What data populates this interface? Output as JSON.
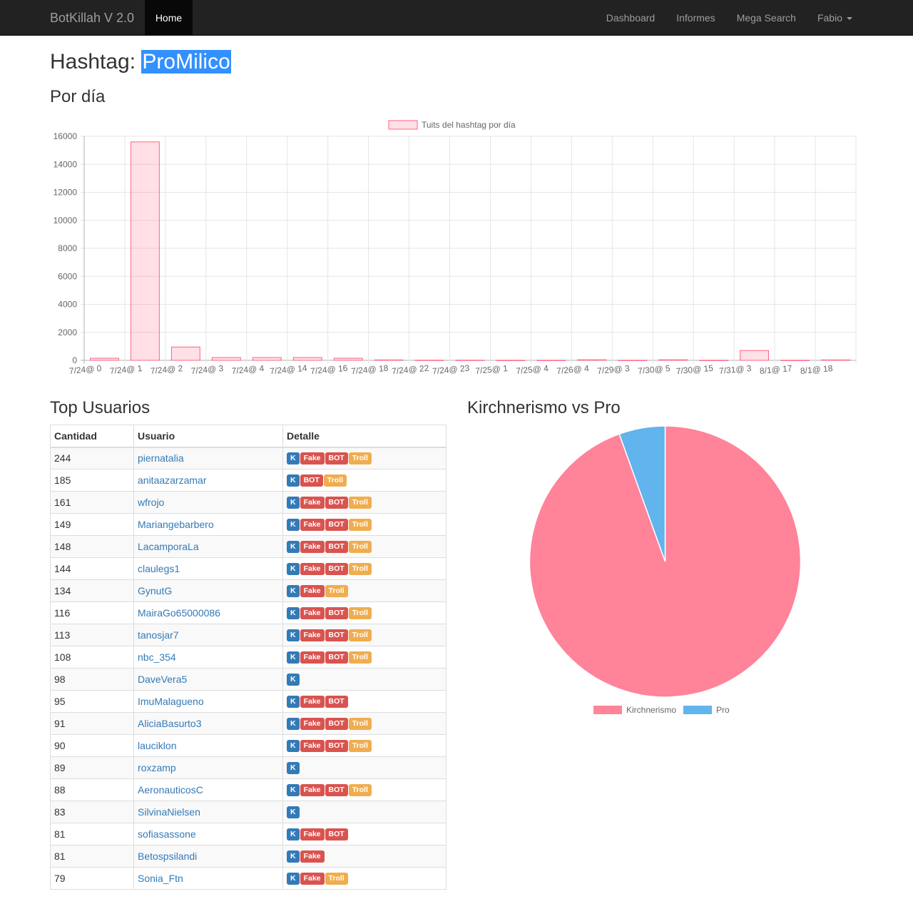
{
  "navbar": {
    "brand": "BotKillah V 2.0",
    "active_item": "Home",
    "right_items": [
      "Dashboard",
      "Informes",
      "Mega Search"
    ],
    "user_menu": "Fabio"
  },
  "page": {
    "title_prefix": "Hashtag: ",
    "hashtag": "ProMilico",
    "section_per_day": "Por día",
    "section_top_users": "Top Usuarios",
    "section_pie": "Kirchnerismo vs Pro"
  },
  "colors": {
    "bar_fill": "rgba(255, 99, 132, 0.2)",
    "bar_border": "rgb(255, 99, 132)",
    "pie_kirchnerismo": "#ff8399",
    "pie_pro": "#61b4ec",
    "link": "#337ab7"
  },
  "chart_data": [
    {
      "type": "bar",
      "legend": [
        "Tuits del hashtag  por día"
      ],
      "categories": [
        "7/24@ 0",
        "7/24@ 1",
        "7/24@ 2",
        "7/24@ 3",
        "7/24@ 4",
        "7/24@ 14",
        "7/24@ 16",
        "7/24@ 18",
        "7/24@ 22",
        "7/24@ 23",
        "7/25@ 1",
        "7/25@ 4",
        "7/26@ 4",
        "7/29@ 3",
        "7/30@ 5",
        "7/30@ 15",
        "7/31@ 3",
        "8/1@ 17",
        "8/1@ 18"
      ],
      "series": [
        {
          "name": "Tuits del hashtag  por día",
          "values": [
            150,
            15600,
            950,
            200,
            200,
            200,
            150,
            30,
            10,
            10,
            5,
            5,
            40,
            5,
            40,
            5,
            700,
            5,
            30
          ]
        }
      ],
      "ylim": [
        0,
        16000
      ],
      "yticks": [
        0,
        2000,
        4000,
        6000,
        8000,
        10000,
        12000,
        14000,
        16000
      ],
      "grid": true,
      "legend_position": "top"
    },
    {
      "type": "pie",
      "labels": [
        "Kirchnerismo",
        "Pro"
      ],
      "values": [
        94.5,
        5.5
      ],
      "legend_position": "bottom"
    }
  ],
  "table": {
    "headers": [
      "Cantidad",
      "Usuario",
      "Detalle"
    ],
    "rows": [
      {
        "count": "244",
        "user": "piernatalia",
        "tags": [
          "K",
          "Fake",
          "BOT",
          "Troll"
        ]
      },
      {
        "count": "185",
        "user": "anitaazarzamar",
        "tags": [
          "K",
          "BOT",
          "Troll"
        ]
      },
      {
        "count": "161",
        "user": "wfrojo",
        "tags": [
          "K",
          "Fake",
          "BOT",
          "Troll"
        ]
      },
      {
        "count": "149",
        "user": "Mariangebarbero",
        "tags": [
          "K",
          "Fake",
          "BOT",
          "Troll"
        ]
      },
      {
        "count": "148",
        "user": "LacamporaLa",
        "tags": [
          "K",
          "Fake",
          "BOT",
          "Troll"
        ]
      },
      {
        "count": "144",
        "user": "claulegs1",
        "tags": [
          "K",
          "Fake",
          "BOT",
          "Troll"
        ]
      },
      {
        "count": "134",
        "user": "GynutG",
        "tags": [
          "K",
          "Fake",
          "Troll"
        ]
      },
      {
        "count": "116",
        "user": "MairaGo65000086",
        "tags": [
          "K",
          "Fake",
          "BOT",
          "Troll"
        ]
      },
      {
        "count": "113",
        "user": "tanosjar7",
        "tags": [
          "K",
          "Fake",
          "BOT",
          "Troll"
        ]
      },
      {
        "count": "108",
        "user": "nbc_354",
        "tags": [
          "K",
          "Fake",
          "BOT",
          "Troll"
        ]
      },
      {
        "count": "98",
        "user": "DaveVera5",
        "tags": [
          "K"
        ]
      },
      {
        "count": "95",
        "user": "ImuMalagueno",
        "tags": [
          "K",
          "Fake",
          "BOT"
        ]
      },
      {
        "count": "91",
        "user": "AliciaBasurto3",
        "tags": [
          "K",
          "Fake",
          "BOT",
          "Troll"
        ]
      },
      {
        "count": "90",
        "user": "lauciklon",
        "tags": [
          "K",
          "Fake",
          "BOT",
          "Troll"
        ]
      },
      {
        "count": "89",
        "user": "roxzamp",
        "tags": [
          "K"
        ]
      },
      {
        "count": "88",
        "user": "AeronauticosC",
        "tags": [
          "K",
          "Fake",
          "BOT",
          "Troll"
        ]
      },
      {
        "count": "83",
        "user": "SilvinaNielsen",
        "tags": [
          "K"
        ]
      },
      {
        "count": "81",
        "user": "sofiasassone",
        "tags": [
          "K",
          "Fake",
          "BOT"
        ]
      },
      {
        "count": "81",
        "user": "Betospsilandi",
        "tags": [
          "K",
          "Fake"
        ]
      },
      {
        "count": "79",
        "user": "Sonia_Ftn",
        "tags": [
          "K",
          "Fake",
          "Troll"
        ]
      }
    ]
  }
}
